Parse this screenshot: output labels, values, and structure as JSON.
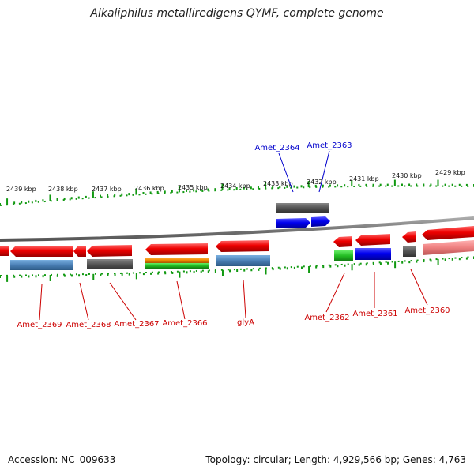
{
  "title": "Alkaliphilus metalliredigens QYMF, complete genome",
  "footer": {
    "accession": "Accession: NC_009633",
    "stats": "Topology: circular; Length: 4,929,566 bp; Genes: 4,763"
  },
  "kbp_labels": [
    "2439 kbp",
    "2438 kbp",
    "2437 kbp",
    "2436 kbp",
    "2435 kbp",
    "2434 kbp",
    "2433 kbp",
    "2432 kbp",
    "2431 kbp",
    "2430 kbp",
    "2429 kbp"
  ],
  "gene_labels_top": [
    "Amet_2364",
    "Amet_2363"
  ],
  "gene_labels_bottom": [
    "Amet_2369",
    "Amet_2368",
    "Amet_2367",
    "Amet_2366",
    "glyA",
    "Amet_2362",
    "Amet_2361",
    "Amet_2360"
  ],
  "colors": {
    "reverse_gene": "#ee0000",
    "forward_gene": "#0000ee",
    "gray_feature": "#555555",
    "steel_blue_feature": "#4a7fb5",
    "orange_feature": "#ee8800",
    "green_feature": "#22bb22",
    "backbone": "#777777",
    "tick": "#119911",
    "label_red": "#cc0000",
    "label_blue": "#0000cc"
  }
}
